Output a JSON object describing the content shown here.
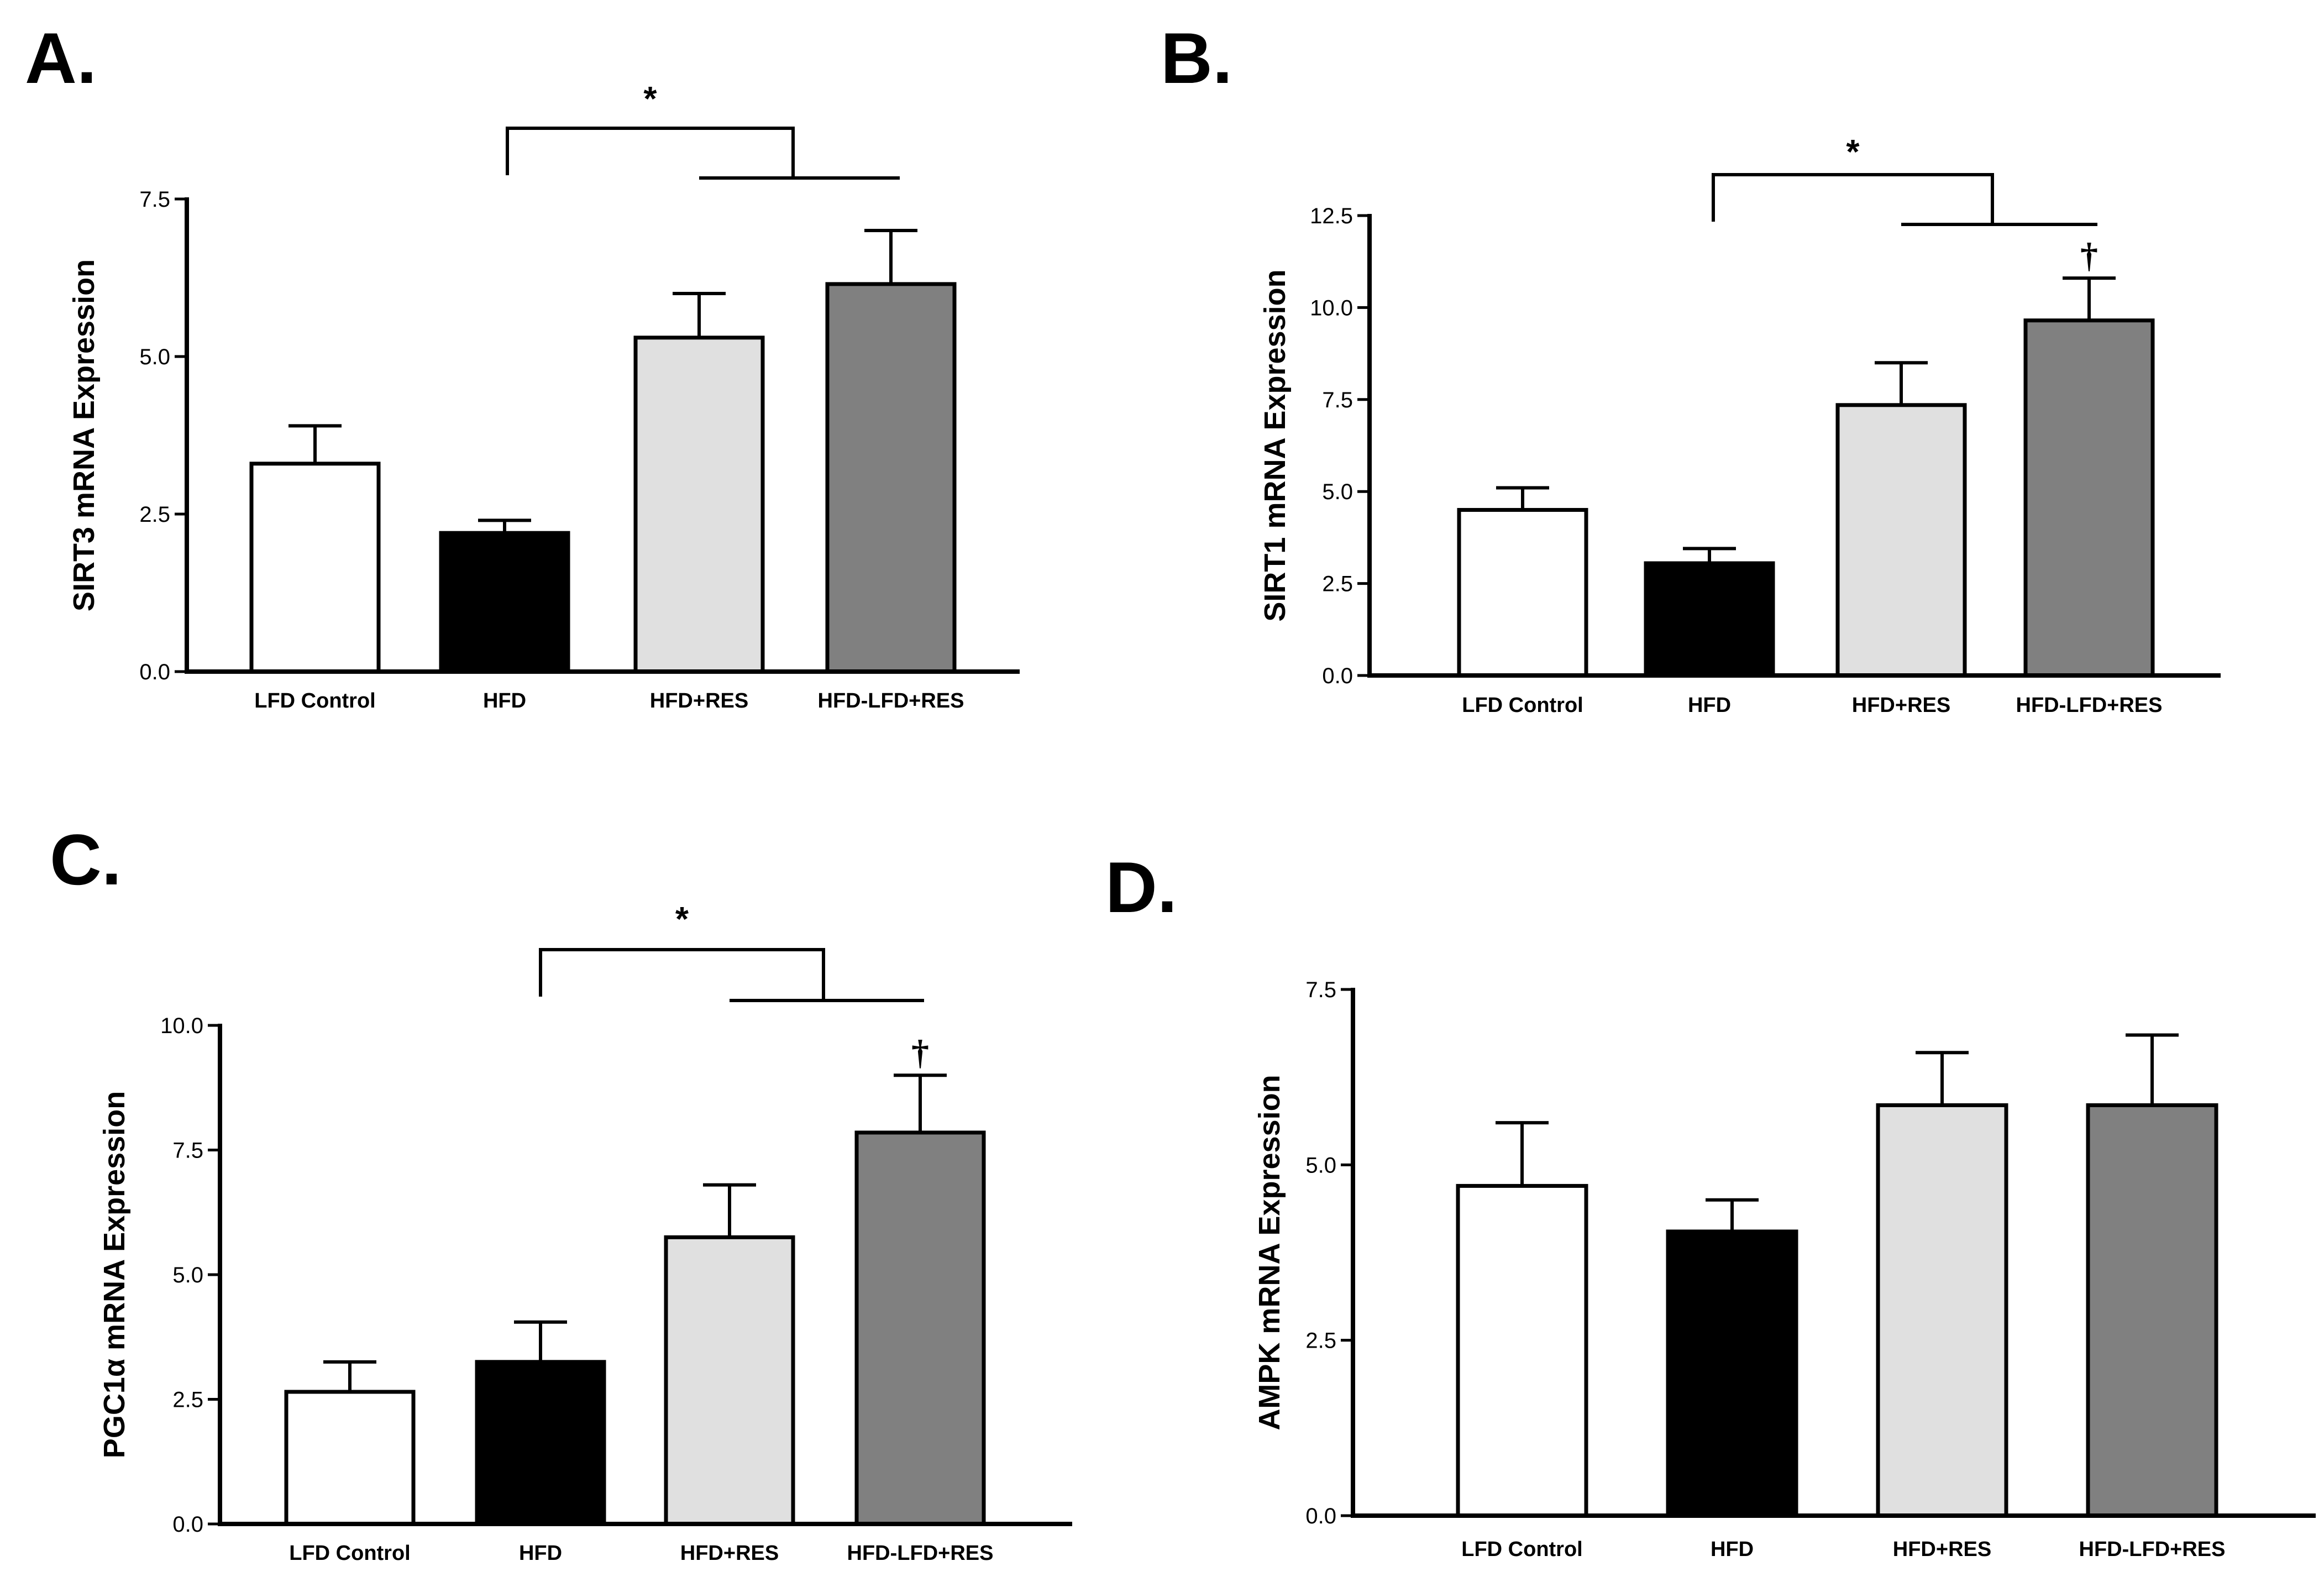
{
  "chart_data": [
    {
      "type": "bar",
      "panel": "A.",
      "categories": [
        "LFD Control",
        "HFD",
        "HFD+RES",
        "HFD-LFD+RES"
      ],
      "values": [
        3.3,
        2.2,
        5.3,
        6.15
      ],
      "errors": [
        0.6,
        0.2,
        0.7,
        0.85
      ],
      "colors": [
        "#ffffff",
        "#000000",
        "#e0e0e0",
        "#808080"
      ],
      "ylabel": "SIRT3 mRNA Expression",
      "ylim": [
        0,
        7.5
      ],
      "yticks": [
        "0.0",
        "2.5",
        "5.0",
        "7.5"
      ],
      "significance": "*",
      "daggers": []
    },
    {
      "type": "bar",
      "panel": "B.",
      "categories": [
        "LFD Control",
        "HFD",
        "HFD+RES",
        "HFD-LFD+RES"
      ],
      "values": [
        4.5,
        3.05,
        7.35,
        9.65
      ],
      "errors": [
        0.6,
        0.4,
        1.15,
        1.15
      ],
      "colors": [
        "#ffffff",
        "#000000",
        "#e0e0e0",
        "#808080"
      ],
      "ylabel": "SIRT1 mRNA Expression",
      "ylim": [
        0,
        12.5
      ],
      "yticks": [
        "0.0",
        "2.5",
        "5.0",
        "7.5",
        "10.0",
        "12.5"
      ],
      "significance": "*",
      "daggers": [
        {
          "bar": 3,
          "symbol": "†"
        }
      ]
    },
    {
      "type": "bar",
      "panel": "C.",
      "categories": [
        "LFD Control",
        "HFD",
        "HFD+RES",
        "HFD-LFD+RES"
      ],
      "values": [
        2.65,
        3.25,
        5.75,
        7.85
      ],
      "errors": [
        0.6,
        0.8,
        1.05,
        1.15
      ],
      "colors": [
        "#ffffff",
        "#000000",
        "#e0e0e0",
        "#808080"
      ],
      "ylabel": "PGC1α mRNA Expression",
      "ylim": [
        0,
        10.0
      ],
      "yticks": [
        "0.0",
        "2.5",
        "5.0",
        "7.5",
        "10.0"
      ],
      "significance": "*",
      "daggers": [
        {
          "bar": 3,
          "symbol": "†"
        }
      ]
    },
    {
      "type": "bar",
      "panel": "D.",
      "categories": [
        "LFD Control",
        "HFD",
        "HFD+RES",
        "HFD-LFD+RES"
      ],
      "values": [
        4.7,
        4.05,
        5.85,
        5.85
      ],
      "errors": [
        0.9,
        0.45,
        0.75,
        1.0
      ],
      "colors": [
        "#ffffff",
        "#000000",
        "#e0e0e0",
        "#808080"
      ],
      "ylabel": "AMPK mRNA Expression",
      "ylim": [
        0,
        7.5
      ],
      "yticks": [
        "0.0",
        "2.5",
        "5.0",
        "7.5"
      ],
      "significance": "",
      "daggers": []
    }
  ]
}
